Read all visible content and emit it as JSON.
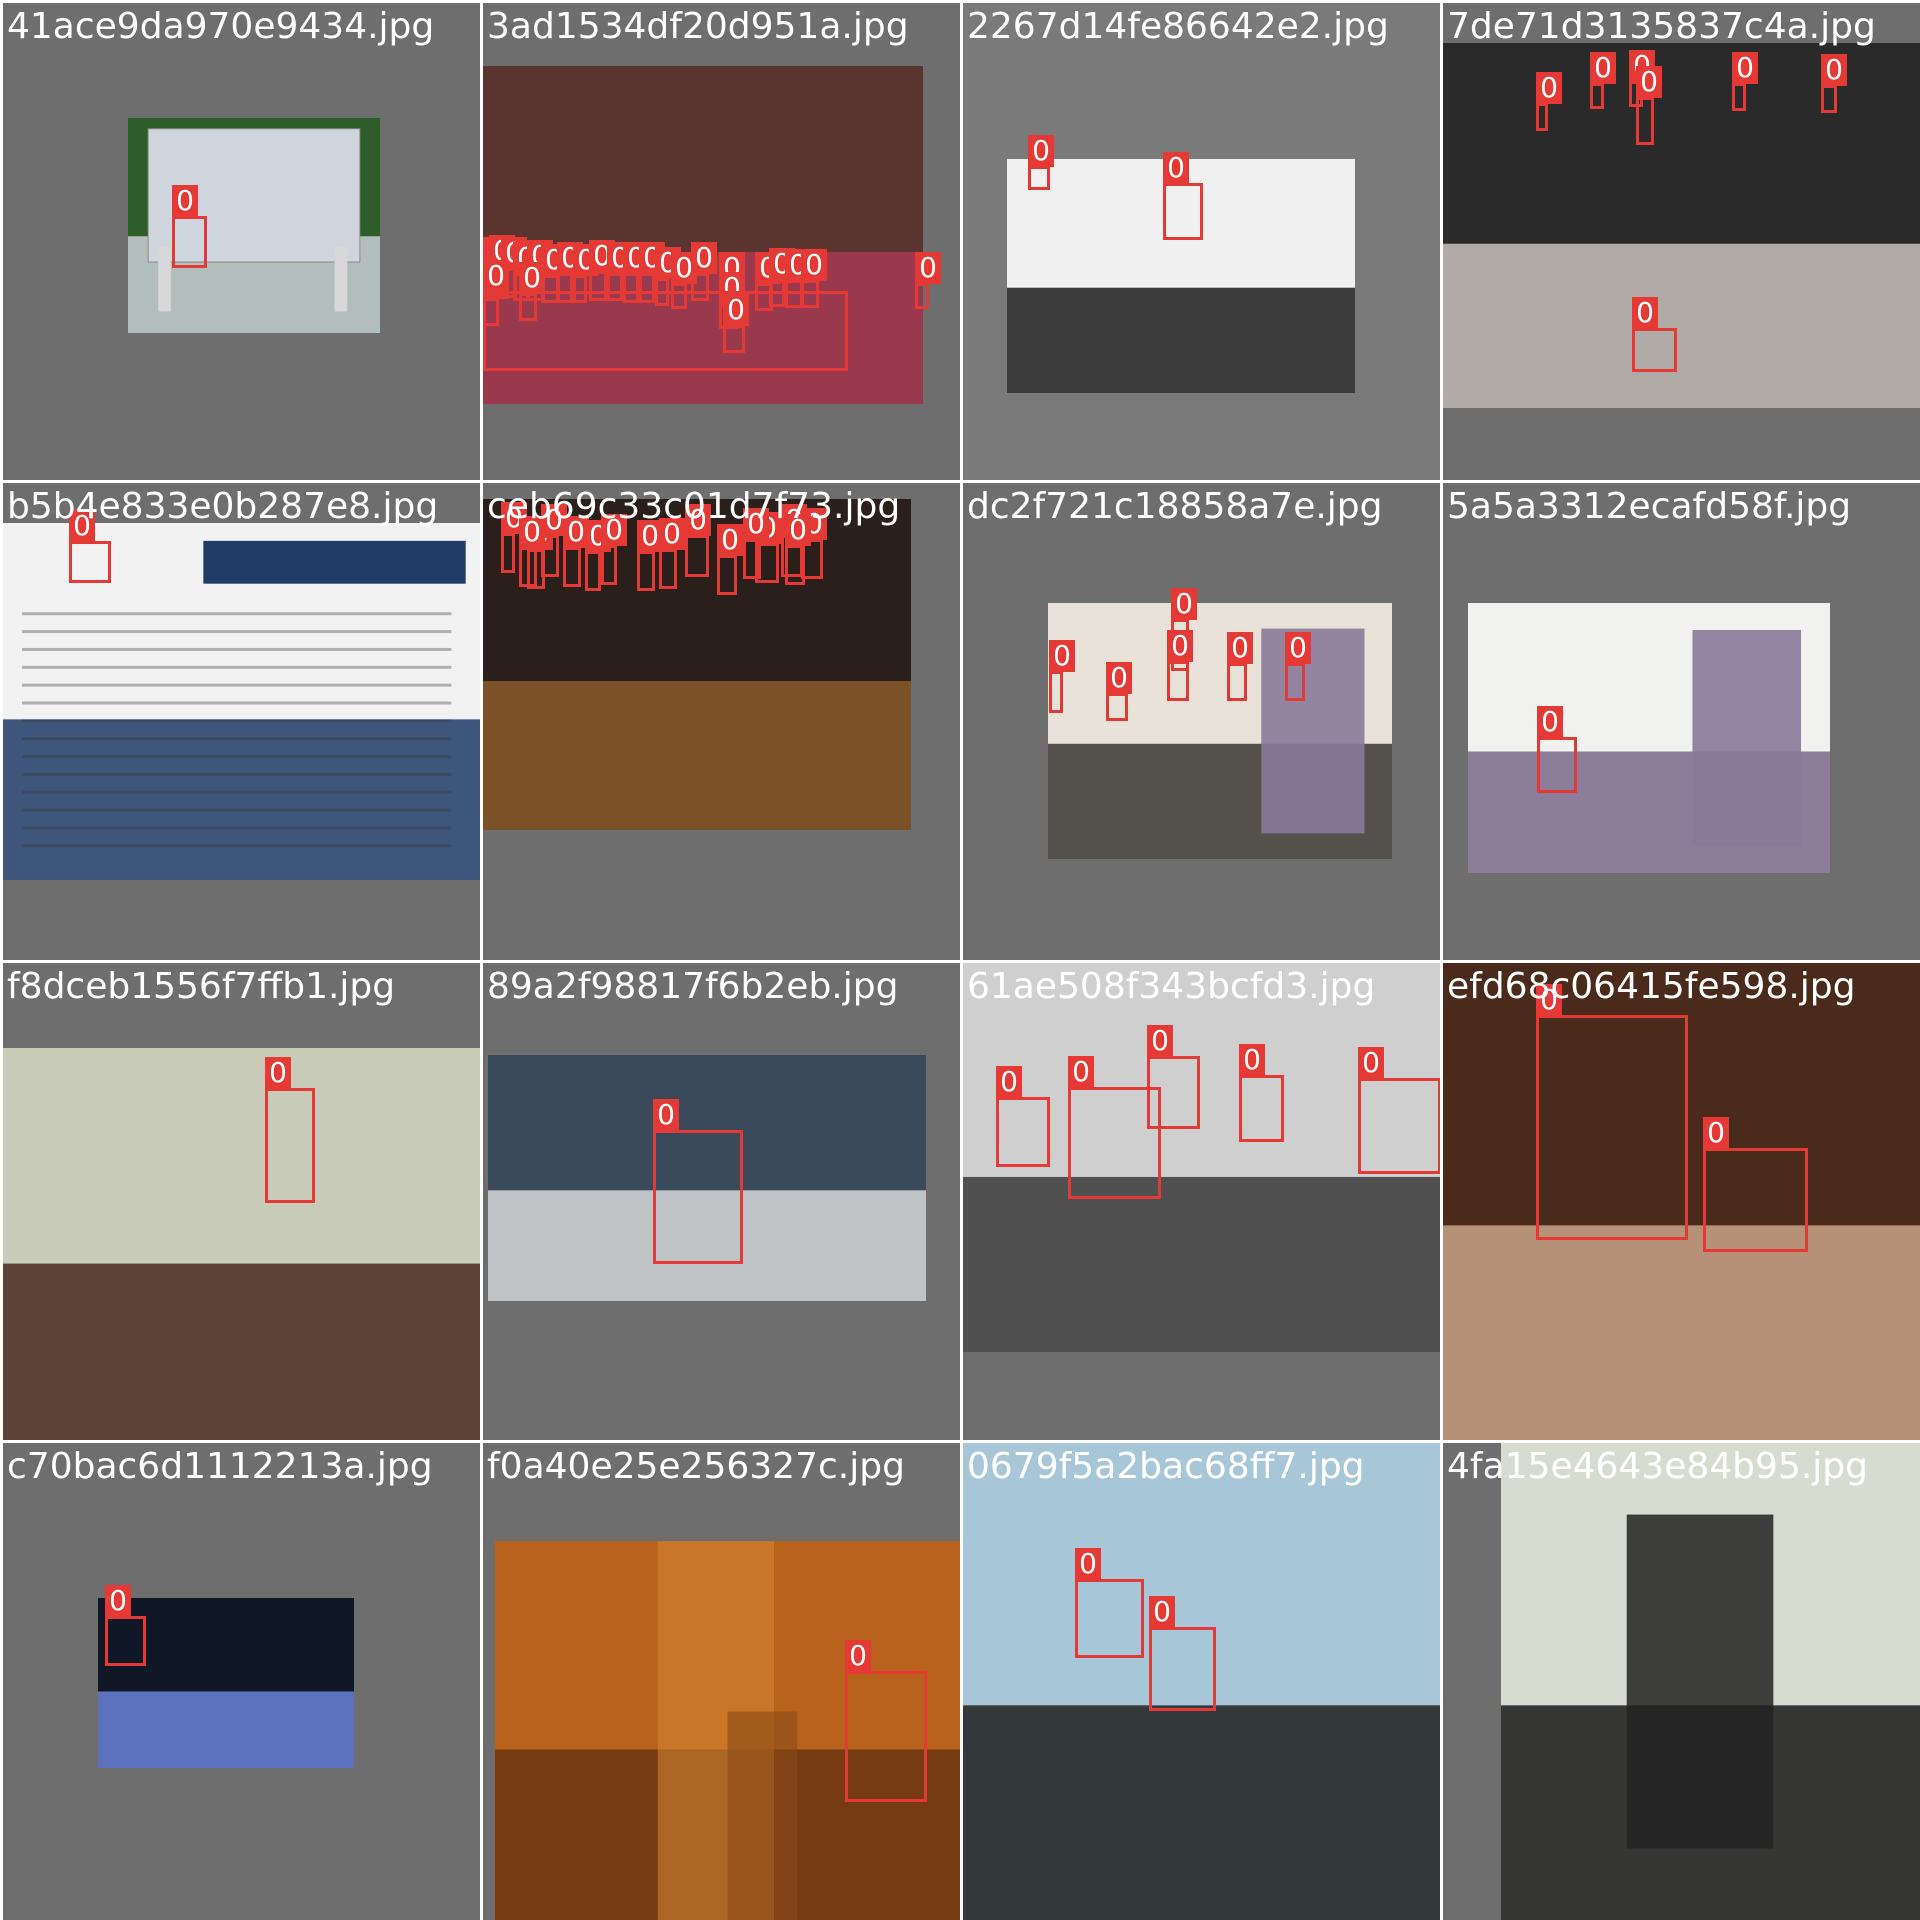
{
  "tiles": [
    {
      "file": "41ace9da970e9434.jpg",
      "bg": "#6e6e6e",
      "photo_colors": [
        "#2f5d2a",
        "#c9cfd6"
      ],
      "face_count": 1,
      "labels": [
        "0"
      ]
    },
    {
      "file": "3ad1534df20d951a.jpg",
      "bg": "#6e6e6e",
      "photo_colors": [
        "#5a3530",
        "#a63a52"
      ],
      "face_count": 26,
      "labels": [
        "0",
        "0",
        "0",
        "0",
        "0",
        "0",
        "0",
        "0",
        "0",
        "0",
        "0",
        "0",
        "0",
        "0",
        "0",
        "0",
        "0",
        "0",
        "0",
        "0",
        "0",
        "0",
        "0",
        "0",
        "0",
        "0"
      ]
    },
    {
      "file": "2267d14fe86642e2.jpg",
      "bg": "#7a7a7a",
      "photo_colors": [
        "#f0f0f0",
        "#1c1c1c"
      ],
      "face_count": 2,
      "labels": [
        "0",
        "0"
      ]
    },
    {
      "file": "7de71d3135837c4a.jpg",
      "bg": "#6e6e6e",
      "photo_colors": [
        "#2a2a2a",
        "#c8c2bd"
      ],
      "face_count": 8,
      "labels": [
        "0",
        "0",
        "0",
        "0",
        "0",
        "0",
        "0",
        "0"
      ]
    },
    {
      "file": "b5b4e833e0b287e8.jpg",
      "bg": "#6e6e6e",
      "photo_colors": [
        "#f2f2f2",
        "#1f3b66"
      ],
      "face_count": 1,
      "labels": [
        "0"
      ]
    },
    {
      "file": "ceb69c33c01d7f73.jpg",
      "bg": "#6e6e6e",
      "photo_colors": [
        "#2a1f1a",
        "#8a5a2a"
      ],
      "face_count": 16,
      "labels": [
        "0",
        "0",
        "0",
        "0",
        "0",
        "0",
        "0",
        "0",
        "0",
        "0",
        "0",
        "0",
        "0",
        "0",
        "0",
        "0"
      ]
    },
    {
      "file": "dc2f721c18858a7e.jpg",
      "bg": "#6e6e6e",
      "photo_colors": [
        "#e8e2d8",
        "#3a3632"
      ],
      "face_count": 6,
      "labels": [
        "0",
        "0",
        "0",
        "0",
        "0",
        "0"
      ]
    },
    {
      "file": "5a5a3312ecafd58f.jpg",
      "bg": "#6e6e6e",
      "photo_colors": [
        "#f1f1ef",
        "#7a6a8a"
      ],
      "face_count": 1,
      "labels": [
        "0"
      ]
    },
    {
      "file": "f8dceb1556f7ffb1.jpg",
      "bg": "#6e6e6e",
      "photo_colors": [
        "#c7cbb8",
        "#4a2a1f"
      ],
      "face_count": 1,
      "labels": [
        "0"
      ]
    },
    {
      "file": "89a2f98817f6b2eb.jpg",
      "bg": "#6e6e6e",
      "photo_colors": [
        "#3a4a5a",
        "#d8d8d8"
      ],
      "face_count": 1,
      "labels": [
        "0"
      ]
    },
    {
      "file": "61ae508f343bcfd3.jpg",
      "bg": "#6e6e6e",
      "photo_colors": [
        "#cfcfcf",
        "#3a3a3a"
      ],
      "face_count": 5,
      "labels": [
        "0",
        "0",
        "0",
        "0",
        "0"
      ]
    },
    {
      "file": "efd68c06415fe598.jpg",
      "bg": "#6e6e6e",
      "photo_colors": [
        "#4a2a1a",
        "#c9a38a"
      ],
      "face_count": 3,
      "labels": [
        "0",
        "0",
        "0"
      ]
    },
    {
      "file": "c70bac6d1112213a.jpg",
      "bg": "#6e6e6e",
      "photo_colors": [
        "#101828",
        "#6a82d8"
      ],
      "face_count": 1,
      "labels": [
        "0"
      ]
    },
    {
      "file": "f0a40e25e256327c.jpg",
      "bg": "#6e6e6e",
      "photo_colors": [
        "#b8621e",
        "#6a3510"
      ],
      "face_count": 1,
      "labels": [
        "0"
      ]
    },
    {
      "file": "0679f5a2bac68ff7.jpg",
      "bg": "#6e6e6e",
      "photo_colors": [
        "#a7c6d8",
        "#1e1e1e"
      ],
      "face_count": 2,
      "labels": [
        "0",
        "0"
      ]
    },
    {
      "file": "4fa15e4643e84b95.jpg",
      "bg": "#6e6e6e",
      "photo_colors": [
        "#d8dcd0",
        "#1a1a1a"
      ],
      "face_count": 1,
      "labels": [
        "0"
      ]
    }
  ],
  "box_color": "#e53935"
}
